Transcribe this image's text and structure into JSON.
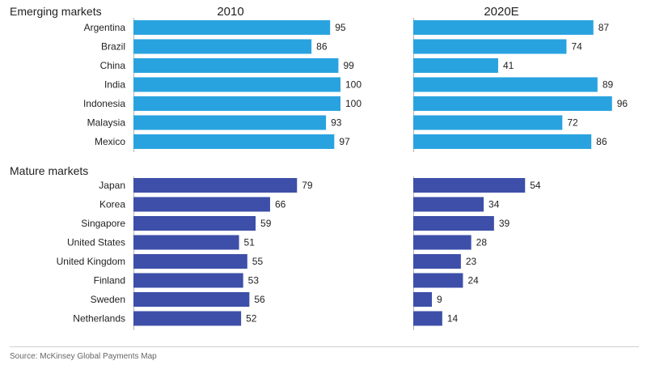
{
  "chart_data": {
    "type": "bar",
    "orientation": "horizontal",
    "panels": [
      "2010",
      "2020E"
    ],
    "groups": [
      {
        "title": "Emerging markets",
        "color": "#29a3df",
        "categories": [
          "Argentina",
          "Brazil",
          "China",
          "India",
          "Indonesia",
          "Malaysia",
          "Mexico"
        ],
        "values_2010": [
          95,
          86,
          99,
          100,
          100,
          93,
          97
        ],
        "values_2020E": [
          87,
          74,
          41,
          89,
          96,
          72,
          86
        ]
      },
      {
        "title": "Mature markets",
        "color": "#3d4fa8",
        "categories": [
          "Japan",
          "Korea",
          "Singapore",
          "United States",
          "United Kingdom",
          "Finland",
          "Sweden",
          "Netherlands"
        ],
        "values_2010": [
          79,
          66,
          59,
          51,
          55,
          53,
          56,
          52
        ],
        "values_2020E": [
          54,
          34,
          39,
          28,
          23,
          24,
          9,
          14
        ]
      }
    ],
    "xlim": [
      0,
      100
    ]
  },
  "source": "Source: McKinsey Global Payments Map"
}
